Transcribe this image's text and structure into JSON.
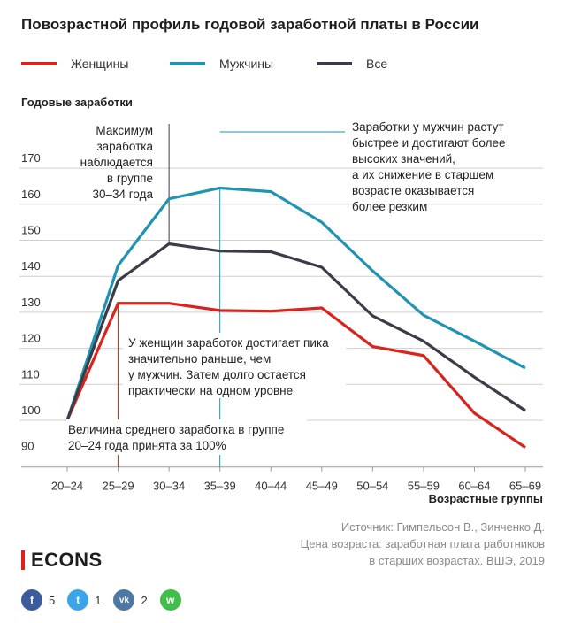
{
  "chart_data": {
    "type": "line",
    "title": "Повозрастной профиль годовой заработной платы в России",
    "ylabel": "Годовые заработки",
    "xlabel": "Возрастные группы",
    "categories": [
      "20–24",
      "25–29",
      "30–34",
      "35–39",
      "40–44",
      "45–49",
      "50–54",
      "55–59",
      "60–64",
      "65–69"
    ],
    "y_ticks": [
      90,
      100,
      110,
      120,
      130,
      140,
      150,
      160,
      170
    ],
    "ylim": [
      90,
      174
    ],
    "grid": true,
    "legend": "top",
    "series": [
      {
        "name": "Женщины",
        "color": "#d9231c",
        "values": [
          100,
          132.5,
          132.5,
          130.5,
          130.3,
          131.2,
          120.5,
          118,
          102,
          92.5
        ]
      },
      {
        "name": "Мужчины",
        "color": "#1e93b2",
        "values": [
          100,
          143,
          161.5,
          164.5,
          163.5,
          155,
          141.5,
          129.2,
          122,
          114.5
        ]
      },
      {
        "name": "Все",
        "color": "#3a3d48",
        "values": [
          100,
          138.8,
          149,
          147,
          146.8,
          142.5,
          129,
          122,
          112,
          102.7
        ]
      }
    ],
    "annotations": [
      {
        "key": "max",
        "lines": [
          "Максимум",
          "заработка",
          "наблюдается",
          "в группе",
          "30–34 года"
        ]
      },
      {
        "key": "men",
        "lines": [
          "Заработки у мужчин растут",
          "быстрее и достигают более",
          "высоких значений,",
          "а их снижение в старшем",
          "возрасте оказывается",
          "более резким"
        ]
      },
      {
        "key": "women",
        "lines": [
          "У женщин заработок достигает пика",
          "значительно раньше, чем",
          "у мужчин. Затем долго остается",
          "практически на одном уровне"
        ]
      },
      {
        "key": "base",
        "lines": [
          "Величина среднего заработка в группе",
          "20–24 года принята за 100%"
        ]
      }
    ]
  },
  "source": {
    "lines": [
      "Источник: Гимпельсон В., Зинченко Д.",
      "Цена возраста: заработная плата работников",
      "в старших возрастах. ВШЭ, 2019"
    ]
  },
  "brand": {
    "logo_text": "ECONS",
    "accent": "#d9231c"
  },
  "social": [
    {
      "icon": "facebook-icon",
      "glyph": "f",
      "color": "#3b5b9a",
      "count": "5"
    },
    {
      "icon": "twitter-icon",
      "glyph": "t",
      "color": "#3aa6e8",
      "count": "1"
    },
    {
      "icon": "vk-icon",
      "glyph": "vk",
      "color": "#4f77a4",
      "count": "2"
    },
    {
      "icon": "whatsapp-icon",
      "glyph": "w",
      "color": "#3fbe4a",
      "count": ""
    }
  ]
}
